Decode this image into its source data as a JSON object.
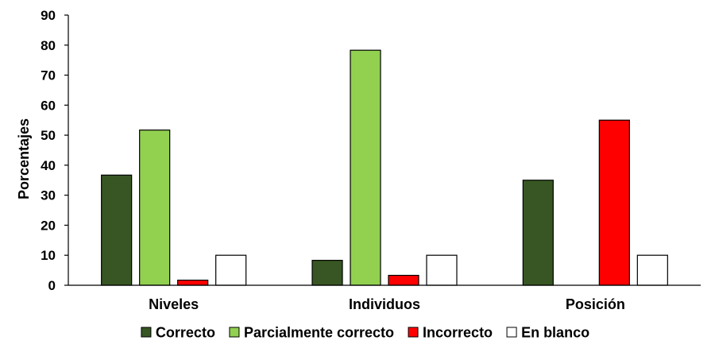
{
  "chart_data": {
    "type": "bar",
    "ylabel": "Porcentajes",
    "xlabel": "",
    "ylim": [
      0,
      90
    ],
    "yticks": [
      "0",
      "10",
      "20",
      "30",
      "40",
      "50",
      "60",
      "70",
      "80",
      "90"
    ],
    "categories": [
      "Niveles",
      "Individuos",
      "Posición"
    ],
    "series": [
      {
        "name": "Correcto",
        "color": "#375623",
        "values": [
          36.7,
          8.3,
          35
        ]
      },
      {
        "name": "Parcialmente correcto",
        "color": "#92D050",
        "values": [
          51.7,
          78.3,
          0
        ]
      },
      {
        "name": "Incorrecto",
        "color": "#FF0000",
        "values": [
          1.7,
          3.3,
          55
        ]
      },
      {
        "name": "En blanco",
        "color": "#FFFFFF",
        "values": [
          10,
          10,
          10
        ]
      }
    ],
    "legend_position": "bottom",
    "grid": false
  }
}
